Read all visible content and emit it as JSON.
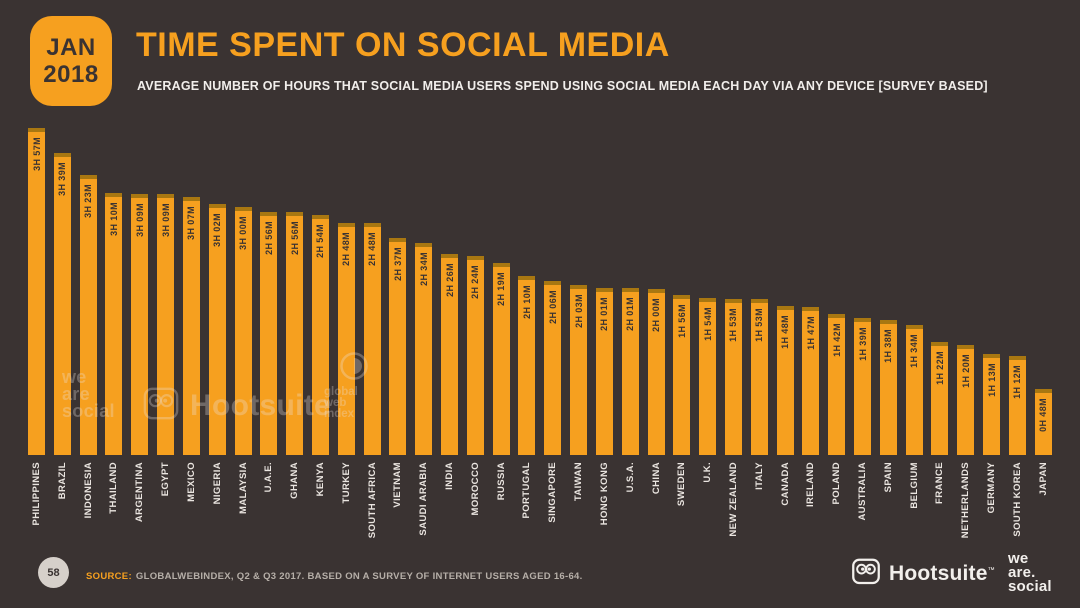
{
  "page": {
    "background": "#3a3332",
    "accent": "#f6a01f"
  },
  "header": {
    "badge_month": "JAN",
    "badge_year": "2018",
    "title": "TIME SPENT ON SOCIAL MEDIA",
    "subtitle": "AVERAGE NUMBER OF HOURS THAT SOCIAL MEDIA USERS SPEND USING SOCIAL MEDIA EACH DAY VIA ANY DEVICE [SURVEY BASED]"
  },
  "chart_data": {
    "type": "bar",
    "title": "TIME SPENT ON SOCIAL MEDIA",
    "ylabel": "Average daily time on social media",
    "unit": "hours and minutes per day",
    "ylim_minutes": [
      0,
      237
    ],
    "grid": false,
    "bar_color": "#f6a01f",
    "bar_cap_color": "#a87711",
    "categories": [
      "PHILIPPINES",
      "BRAZIL",
      "INDONESIA",
      "THAILAND",
      "ARGENTINA",
      "EGYPT",
      "MEXICO",
      "NIGERIA",
      "MALAYSIA",
      "U.A.E.",
      "GHANA",
      "KENYA",
      "TURKEY",
      "SOUTH AFRICA",
      "VIETNAM",
      "SAUDI ARABIA",
      "INDIA",
      "MOROCCO",
      "RUSSIA",
      "PORTUGAL",
      "SINGAPORE",
      "TAIWAN",
      "HONG KONG",
      "U.S.A.",
      "CHINA",
      "SWEDEN",
      "U.K.",
      "NEW ZEALAND",
      "ITALY",
      "CANADA",
      "IRELAND",
      "POLAND",
      "AUSTRALIA",
      "SPAIN",
      "BELGIUM",
      "FRANCE",
      "NETHERLANDS",
      "GERMANY",
      "SOUTH KOREA",
      "JAPAN"
    ],
    "bar_labels": [
      "3H 57M",
      "3H 39M",
      "3H 23M",
      "3H 10M",
      "3H 09M",
      "3H 09M",
      "3H 07M",
      "3H 02M",
      "3H 00M",
      "2H 56M",
      "2H 56M",
      "2H 54M",
      "2H 48M",
      "2H 48M",
      "2H 37M",
      "2H 34M",
      "2H 26M",
      "2H 24M",
      "2H 19M",
      "2H 10M",
      "2H 06M",
      "2H 03M",
      "2H 01M",
      "2H 01M",
      "2H 00M",
      "1H 56M",
      "1H 54M",
      "1H 53M",
      "1H 53M",
      "1H 48M",
      "1H 47M",
      "1H 42M",
      "1H 39M",
      "1H 38M",
      "1H 34M",
      "1H 22M",
      "1H 20M",
      "1H 13M",
      "1H 12M",
      "0H 48M"
    ],
    "values_minutes": [
      237,
      219,
      203,
      190,
      189,
      189,
      187,
      182,
      180,
      176,
      176,
      174,
      168,
      168,
      157,
      154,
      146,
      144,
      139,
      130,
      126,
      123,
      121,
      121,
      120,
      116,
      114,
      113,
      113,
      108,
      107,
      102,
      99,
      98,
      94,
      82,
      80,
      73,
      72,
      48
    ]
  },
  "watermarks": {
    "we_are_social": [
      "we",
      "are",
      "social"
    ],
    "hootsuite": "Hootsuite",
    "gwi": [
      "global",
      "web",
      "index"
    ]
  },
  "footer": {
    "page_number": "58",
    "source_label": "SOURCE:",
    "source_text": "GLOBALWEBINDEX, Q2 & Q3 2017. BASED ON A SURVEY OF INTERNET USERS AGED 16-64.",
    "hootsuite_name": "Hootsuite",
    "hootsuite_tm": "™",
    "we_are_social": [
      "we",
      "are.",
      "social"
    ]
  }
}
